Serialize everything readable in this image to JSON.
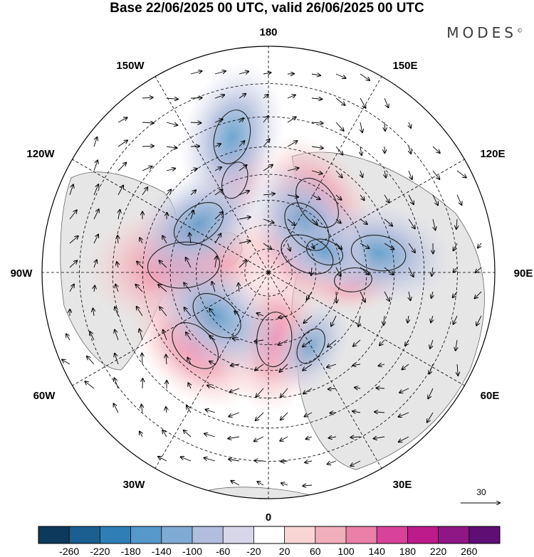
{
  "title": "Base 22/06/2025 00 UTC, valid 26/06/2025 00 UTC",
  "brand": "MODES",
  "brand_mark": "©",
  "map": {
    "projection": "north-polar-stereographic",
    "longitude_labels": {
      "top": "180",
      "bottom": "0",
      "left": "90W",
      "right": "90E",
      "upper_left_1": "150W",
      "upper_left_2": "120W",
      "lower_left_1": "60W",
      "lower_left_2": "30W",
      "upper_right_1": "150E",
      "upper_right_2": "120E",
      "lower_right_1": "60E",
      "lower_right_2": "30E"
    },
    "reference_vector_label": "30",
    "anomaly_field": [
      {
        "sign": "+",
        "strength": 3,
        "lon": -95,
        "lat": 55
      },
      {
        "sign": "+",
        "strength": 2,
        "lon": 5,
        "lat": 62
      },
      {
        "sign": "+",
        "strength": 2,
        "lon": 115,
        "lat": 72
      },
      {
        "sign": "+",
        "strength": 2,
        "lon": 145,
        "lat": 55
      },
      {
        "sign": "+",
        "strength": 2,
        "lon": -45,
        "lat": 48
      },
      {
        "sign": "+",
        "strength": 1,
        "lon": -160,
        "lat": 50
      },
      {
        "sign": "+",
        "strength": 1,
        "lon": 85,
        "lat": 55
      },
      {
        "sign": "-",
        "strength": 2,
        "lon": -125,
        "lat": 55
      },
      {
        "sign": "-",
        "strength": 2,
        "lon": -50,
        "lat": 62
      },
      {
        "sign": "-",
        "strength": 2,
        "lon": 100,
        "lat": 45
      },
      {
        "sign": "-",
        "strength": 2,
        "lon": 140,
        "lat": 65
      },
      {
        "sign": "-",
        "strength": 2,
        "lon": -165,
        "lat": 35
      },
      {
        "sign": "-",
        "strength": 1,
        "lon": 30,
        "lat": 55
      },
      {
        "sign": "-",
        "strength": 1,
        "lon": 110,
        "lat": 65
      }
    ]
  },
  "colorbar": {
    "colors": [
      "#0d3a5c",
      "#1a5f8f",
      "#2f7fb6",
      "#5598c9",
      "#7faad4",
      "#b1bedd",
      "#d8d7ea",
      "#ffffff",
      "#f8d5d3",
      "#f1aebb",
      "#ea7fa8",
      "#d9429a",
      "#bd1a8c",
      "#8f1785",
      "#5d0f73"
    ],
    "ticks": [
      "-260",
      "-220",
      "-180",
      "-140",
      "-100",
      "-60",
      "-20",
      "20",
      "60",
      "100",
      "140",
      "180",
      "220",
      "260"
    ]
  }
}
